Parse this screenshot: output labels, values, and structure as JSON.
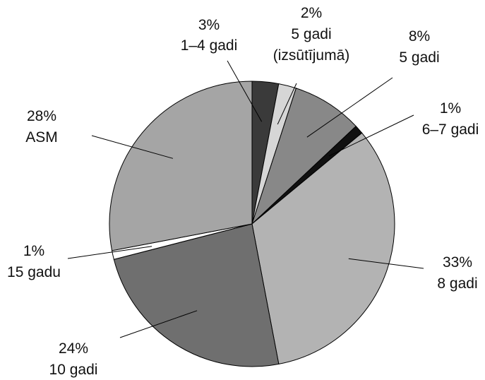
{
  "chart_data": {
    "type": "pie",
    "title": "",
    "slices": [
      {
        "pct_label": "3%",
        "category": "1–4 gadi",
        "value": 3,
        "color": "#3a3a3a"
      },
      {
        "pct_label": "2%",
        "category": "5 gadi",
        "category2": "(izsūtījumā)",
        "value": 2,
        "color": "#d6d6d6"
      },
      {
        "pct_label": "8%",
        "category": "5 gadi",
        "value": 8,
        "color": "#888888"
      },
      {
        "pct_label": "1%",
        "category": "6–7 gadi",
        "value": 1,
        "color": "#111111"
      },
      {
        "pct_label": "33%",
        "category": "8 gadi",
        "value": 33,
        "color": "#b3b3b3"
      },
      {
        "pct_label": "24%",
        "category": "10 gadi",
        "value": 24,
        "color": "#6f6f6f"
      },
      {
        "pct_label": "1%",
        "category": "15 gadu",
        "value": 1,
        "color": "#ffffff"
      },
      {
        "pct_label": "28%",
        "category": "ASM",
        "value": 28,
        "color": "#a5a5a5"
      }
    ]
  }
}
